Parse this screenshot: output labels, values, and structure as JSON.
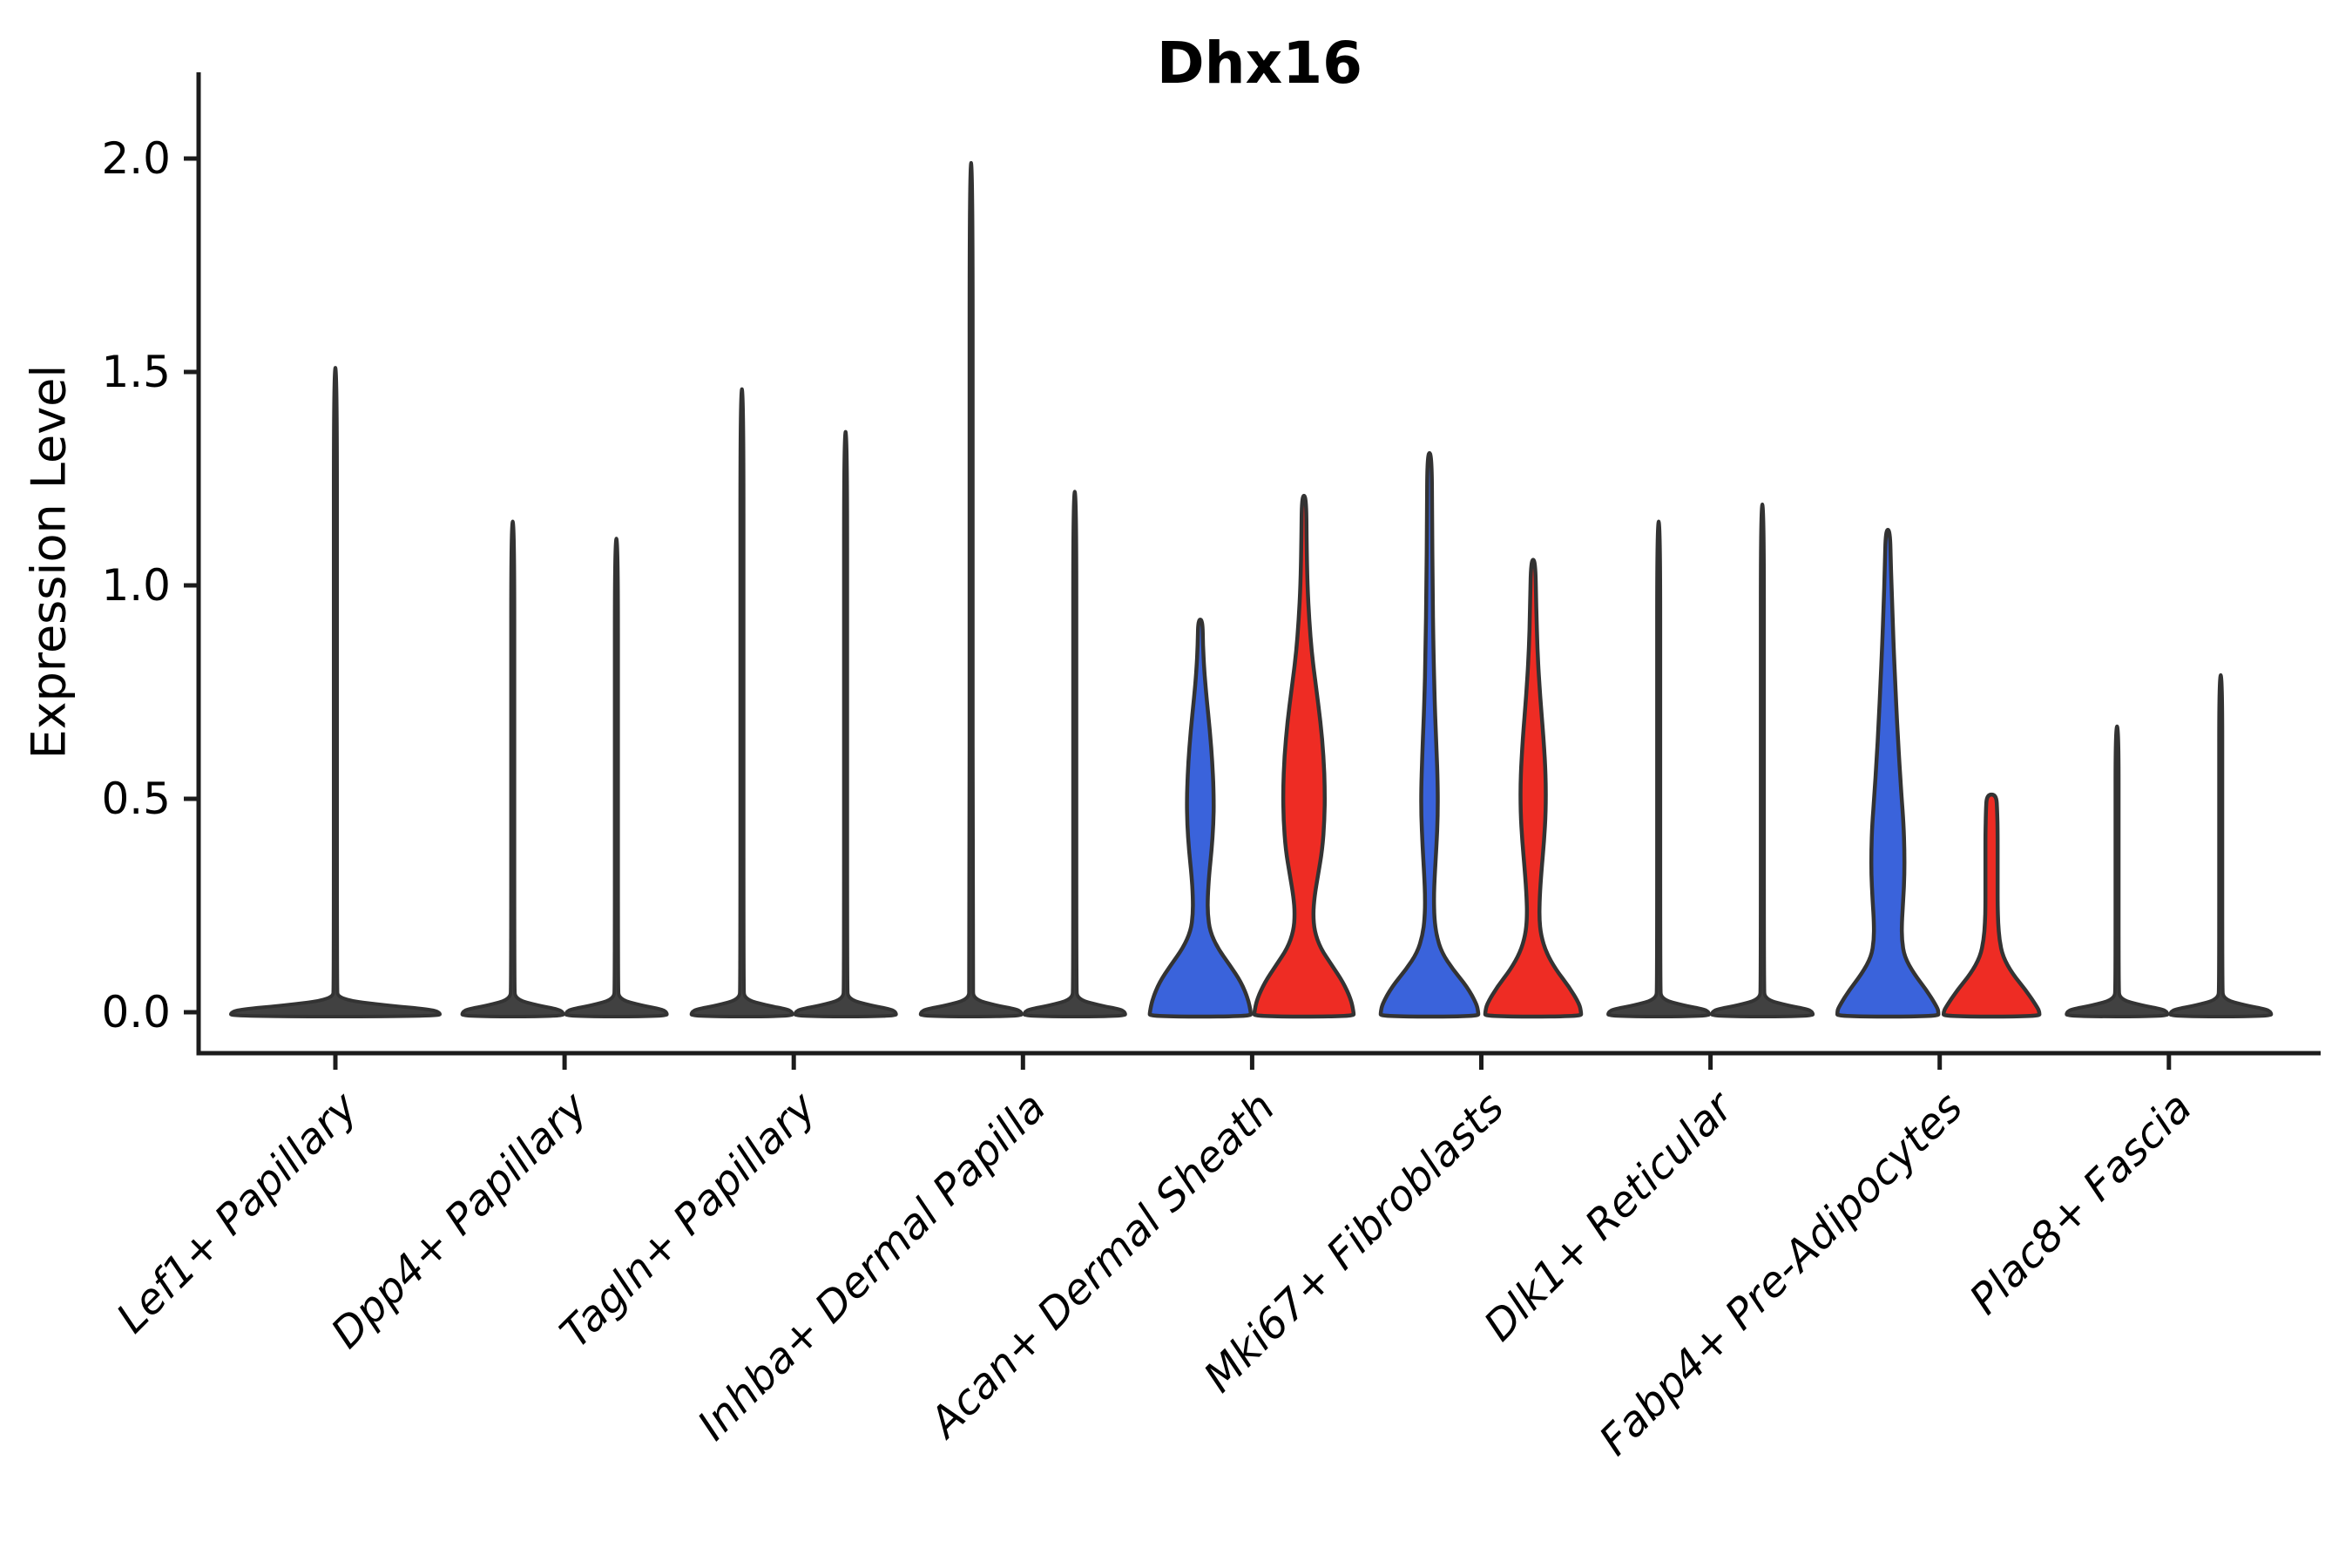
{
  "chart_data": {
    "type": "violin",
    "title": "Dhx16",
    "ylabel": "Expression Level",
    "xlabel": "",
    "ylim": [
      -0.1,
      2.2
    ],
    "grid": false,
    "legend_position": "none",
    "yticks": [
      {
        "value": 0.0,
        "label": "0.0"
      },
      {
        "value": 0.5,
        "label": "0.5"
      },
      {
        "value": 1.0,
        "label": "1.0"
      },
      {
        "value": 1.5,
        "label": "1.5"
      },
      {
        "value": 2.0,
        "label": "2.0"
      }
    ],
    "categories": [
      "Lef1+ Papillary",
      "Dpp4+ Papillary",
      "Tagln+ Papillary",
      "Inhba+ Dermal Papilla",
      "Acan+ Dermal Sheath",
      "Mki67+ Fibroblasts",
      "Dlk1+ Reticular",
      "Fabp4+ Pre-Adipocytes",
      "Plac8+ Fascia"
    ],
    "colors": {
      "blue_fill": "#3A63DB",
      "red_fill": "#EE2C24",
      "outline": "#333333",
      "spike_fill": "#414141",
      "axis": "#1c1c1c",
      "text": "#000000"
    },
    "groups": [
      {
        "category": "Lef1+ Papillary",
        "violins": [
          {
            "side": "center",
            "fill": "dark",
            "kind": "spike",
            "max": 1.51,
            "base_halfwidth": 120
          }
        ]
      },
      {
        "category": "Dpp4+ Papillary",
        "violins": [
          {
            "side": "left",
            "fill": "dark",
            "kind": "spike",
            "max": 1.15,
            "base_halfwidth": 58
          },
          {
            "side": "right",
            "fill": "dark",
            "kind": "spike",
            "max": 1.11,
            "base_halfwidth": 58
          }
        ]
      },
      {
        "category": "Tagln+ Papillary",
        "violins": [
          {
            "side": "left",
            "fill": "dark",
            "kind": "spike",
            "max": 1.46,
            "base_halfwidth": 58
          },
          {
            "side": "right",
            "fill": "dark",
            "kind": "spike",
            "max": 1.36,
            "base_halfwidth": 58
          }
        ]
      },
      {
        "category": "Inhba+ Dermal Papilla",
        "violins": [
          {
            "side": "left",
            "fill": "dark",
            "kind": "spike",
            "max": 1.99,
            "base_halfwidth": 58
          },
          {
            "side": "right",
            "fill": "dark",
            "kind": "spike",
            "max": 1.22,
            "base_halfwidth": 58
          }
        ]
      },
      {
        "category": "Acan+ Dermal Sheath",
        "violins": [
          {
            "side": "left",
            "fill": "blue",
            "kind": "body",
            "max": 0.92,
            "profile": [
              [
                0.92,
                2.5
              ],
              [
                0.86,
                3
              ],
              [
                0.8,
                4.5
              ],
              [
                0.74,
                7
              ],
              [
                0.66,
                11
              ],
              [
                0.58,
                14
              ],
              [
                0.5,
                15.5
              ],
              [
                0.44,
                15
              ],
              [
                0.38,
                13
              ],
              [
                0.32,
                10
              ],
              [
                0.27,
                8.5
              ],
              [
                0.23,
                8.5
              ],
              [
                0.19,
                11
              ],
              [
                0.15,
                20
              ],
              [
                0.11,
                34
              ],
              [
                0.07,
                47
              ],
              [
                0.03,
                55
              ],
              [
                0.0,
                58
              ]
            ]
          },
          {
            "side": "right",
            "fill": "red",
            "kind": "body",
            "max": 1.21,
            "profile": [
              [
                1.21,
                2.5
              ],
              [
                1.1,
                3
              ],
              [
                1.0,
                4
              ],
              [
                0.92,
                6
              ],
              [
                0.84,
                9
              ],
              [
                0.76,
                14
              ],
              [
                0.68,
                19
              ],
              [
                0.6,
                22.5
              ],
              [
                0.52,
                24
              ],
              [
                0.45,
                23.5
              ],
              [
                0.38,
                21
              ],
              [
                0.32,
                16
              ],
              [
                0.27,
                12
              ],
              [
                0.23,
                10.5
              ],
              [
                0.19,
                12
              ],
              [
                0.15,
                19
              ],
              [
                0.11,
                32
              ],
              [
                0.07,
                45
              ],
              [
                0.03,
                54
              ],
              [
                0.0,
                57
              ]
            ]
          }
        ]
      },
      {
        "category": "Mki67+ Fibroblasts",
        "violins": [
          {
            "side": "left",
            "fill": "blue",
            "kind": "body",
            "max": 1.31,
            "profile": [
              [
                1.31,
                2.5
              ],
              [
                1.15,
                3
              ],
              [
                1.0,
                3.5
              ],
              [
                0.85,
                4.5
              ],
              [
                0.72,
                6
              ],
              [
                0.62,
                8
              ],
              [
                0.53,
                9.5
              ],
              [
                0.46,
                9.5
              ],
              [
                0.39,
                8
              ],
              [
                0.32,
                6
              ],
              [
                0.27,
                5
              ],
              [
                0.22,
                5.5
              ],
              [
                0.18,
                8
              ],
              [
                0.14,
                14
              ],
              [
                0.1,
                27
              ],
              [
                0.06,
                43
              ],
              [
                0.02,
                54
              ],
              [
                0.0,
                56
              ]
            ]
          },
          {
            "side": "right",
            "fill": "red",
            "kind": "body",
            "max": 1.06,
            "profile": [
              [
                1.06,
                2.5
              ],
              [
                0.95,
                3.5
              ],
              [
                0.84,
                5
              ],
              [
                0.74,
                8
              ],
              [
                0.64,
                12
              ],
              [
                0.55,
                14.5
              ],
              [
                0.47,
                14.5
              ],
              [
                0.4,
                12.5
              ],
              [
                0.33,
                9.5
              ],
              [
                0.27,
                7.5
              ],
              [
                0.22,
                7
              ],
              [
                0.18,
                9
              ],
              [
                0.14,
                15
              ],
              [
                0.1,
                26
              ],
              [
                0.06,
                41
              ],
              [
                0.02,
                53
              ],
              [
                0.0,
                55
              ]
            ]
          }
        ]
      },
      {
        "category": "Dlk1+ Reticular",
        "violins": [
          {
            "side": "left",
            "fill": "dark",
            "kind": "spike",
            "max": 1.15,
            "base_halfwidth": 58
          },
          {
            "side": "right",
            "fill": "dark",
            "kind": "spike",
            "max": 1.19,
            "base_halfwidth": 58
          }
        ]
      },
      {
        "category": "Fabp4+ Pre-Adipocytes",
        "violins": [
          {
            "side": "left",
            "fill": "blue",
            "kind": "body",
            "max": 1.13,
            "profile": [
              [
                1.13,
                2.5
              ],
              [
                1.04,
                3.5
              ],
              [
                0.95,
                5
              ],
              [
                0.86,
                6.5
              ],
              [
                0.77,
                8.5
              ],
              [
                0.68,
                10.5
              ],
              [
                0.59,
                13
              ],
              [
                0.51,
                15.5
              ],
              [
                0.44,
                18
              ],
              [
                0.38,
                19
              ],
              [
                0.32,
                19
              ],
              [
                0.26,
                17.5
              ],
              [
                0.21,
                16
              ],
              [
                0.17,
                16
              ],
              [
                0.13,
                19
              ],
              [
                0.09,
                30
              ],
              [
                0.05,
                45
              ],
              [
                0.01,
                57
              ],
              [
                0.0,
                58
              ]
            ]
          },
          {
            "side": "right",
            "fill": "red",
            "kind": "body",
            "max": 0.51,
            "profile": [
              [
                0.51,
                5.5
              ],
              [
                0.47,
                6.5
              ],
              [
                0.42,
                7
              ],
              [
                0.36,
                7
              ],
              [
                0.3,
                7
              ],
              [
                0.25,
                7
              ],
              [
                0.21,
                7.5
              ],
              [
                0.17,
                9
              ],
              [
                0.13,
                13
              ],
              [
                0.09,
                24
              ],
              [
                0.05,
                40
              ],
              [
                0.01,
                53
              ],
              [
                0.0,
                55
              ]
            ]
          }
        ]
      },
      {
        "category": "Plac8+ Fascia",
        "violins": [
          {
            "side": "left",
            "fill": "dark",
            "kind": "spike",
            "max": 0.67,
            "base_halfwidth": 58
          },
          {
            "side": "right",
            "fill": "dark",
            "kind": "spike",
            "max": 0.79,
            "base_halfwidth": 58
          }
        ]
      }
    ]
  }
}
